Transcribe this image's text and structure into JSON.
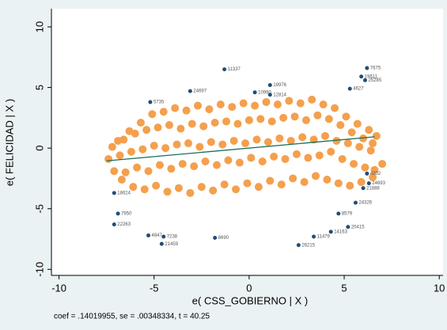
{
  "chart_data": {
    "type": "scatter",
    "xlabel": "e( CSS_GOBIERNO | X )",
    "ylabel": "e( FELICIDAD | X )",
    "note": "coef = .14019955, se = .00348334, t = 40.25",
    "xlim": [
      -10.4,
      10.2
    ],
    "ylim": [
      -10.5,
      11.5
    ],
    "xticks": [
      -10,
      -5,
      0,
      5,
      10
    ],
    "yticks": [
      -10,
      -5,
      0,
      5,
      10
    ],
    "grid": false,
    "series": [
      {
        "color": "#f4a04d",
        "x": [
          -6.9,
          -6.3,
          -5.7,
          -5.1,
          -4.5,
          -3.9,
          -3.3,
          -2.7,
          -2.1,
          -1.5,
          -0.9,
          -0.3,
          0.3,
          0.9,
          1.5,
          2.1,
          2.7,
          3.3,
          3.9,
          4.5,
          5.1,
          5.7,
          6.3,
          6.7,
          -7.2,
          -6.6,
          -6.0,
          -5.4,
          -4.8,
          -4.2,
          -3.6,
          -3.0,
          -2.4,
          -1.8,
          -1.2,
          -0.6,
          0.0,
          0.6,
          1.2,
          1.8,
          2.4,
          3.0,
          3.6,
          4.2,
          4.8,
          5.4,
          6.0,
          6.5,
          -7.4,
          -6.8,
          -6.2,
          -5.6,
          -5.0,
          -4.4,
          -3.8,
          -3.2,
          -2.6,
          -2.0,
          -1.4,
          -0.8,
          -0.2,
          0.4,
          1.0,
          1.6,
          2.2,
          2.8,
          3.4,
          4.0,
          4.6,
          5.2,
          5.8,
          6.4,
          -7.1,
          -6.5,
          -5.9,
          -5.3,
          -4.7,
          -4.1,
          -3.5,
          -2.9,
          -2.3,
          -1.7,
          -1.1,
          -0.5,
          0.1,
          0.7,
          1.3,
          1.9,
          2.5,
          3.1,
          3.7,
          4.3,
          4.9,
          5.5,
          6.1,
          6.6,
          -6.7,
          -6.1,
          -5.5,
          -4.9,
          -4.3,
          -3.7,
          -3.1,
          -2.5,
          -1.9,
          -1.3,
          -0.7,
          -0.1,
          0.5,
          1.1,
          1.7,
          2.3,
          2.9,
          3.5,
          4.1,
          4.7,
          5.3,
          5.9,
          6.5,
          7.0
        ],
        "y": [
          0.6,
          1.4,
          2.1,
          2.8,
          3.0,
          3.3,
          3.1,
          3.5,
          3.2,
          3.6,
          3.4,
          3.7,
          3.5,
          3.8,
          3.6,
          3.9,
          3.7,
          4.0,
          3.6,
          3.3,
          2.6,
          2.0,
          1.5,
          1.0,
          0.1,
          0.7,
          1.2,
          1.5,
          1.7,
          1.9,
          1.6,
          2.0,
          1.8,
          2.1,
          2.2,
          2.0,
          2.3,
          2.4,
          2.2,
          2.5,
          2.6,
          2.3,
          2.7,
          2.4,
          1.9,
          1.3,
          0.8,
          0.4,
          -0.9,
          -0.6,
          -0.3,
          -0.1,
          0.2,
          0.0,
          0.3,
          0.4,
          0.1,
          0.5,
          0.3,
          0.6,
          0.4,
          0.7,
          0.5,
          0.8,
          0.6,
          0.9,
          0.7,
          1.0,
          0.6,
          0.4,
          0.1,
          -0.2,
          -1.9,
          -2.0,
          -1.6,
          -1.9,
          -1.4,
          -1.7,
          -1.3,
          -1.5,
          -1.1,
          -1.4,
          -1.0,
          -1.2,
          -0.8,
          -1.1,
          -0.7,
          -0.9,
          -0.5,
          -0.8,
          -0.6,
          -0.3,
          -0.9,
          -1.3,
          -1.6,
          -1.8,
          -2.6,
          -3.2,
          -3.4,
          -3.1,
          -3.6,
          -3.3,
          -3.7,
          -3.2,
          -3.5,
          -3.0,
          -3.4,
          -2.9,
          -3.2,
          -2.7,
          -3.0,
          -2.5,
          -2.8,
          -2.3,
          -2.6,
          -2.9,
          -3.1,
          -2.8,
          -2.4,
          -1.3
        ]
      },
      {
        "color": "#1f4e79",
        "labels": [
          "11337",
          "7675",
          "19611",
          "25285",
          "19976",
          "4627",
          "4202",
          "24693",
          "20415",
          "14163",
          "11479",
          "21459",
          "7238",
          "4847",
          "22263",
          "7950",
          "18624",
          "24697",
          "10990",
          "12814",
          "5735",
          "8579",
          "24326",
          "26215",
          "8690",
          "21888"
        ],
        "x": [
          -1.3,
          6.2,
          5.9,
          6.1,
          1.1,
          5.3,
          6.2,
          6.3,
          5.2,
          4.3,
          3.4,
          -4.6,
          -4.5,
          -5.3,
          -7.1,
          -6.9,
          -7.1,
          -3.1,
          0.3,
          1.1,
          -5.2,
          4.7,
          5.6,
          2.6,
          -1.8,
          6.0
        ],
        "y": [
          6.5,
          6.6,
          5.9,
          5.6,
          5.2,
          4.9,
          -2.1,
          -2.9,
          -6.5,
          -6.9,
          -7.3,
          -7.9,
          -7.3,
          -7.2,
          -6.3,
          -5.4,
          -3.7,
          4.7,
          4.6,
          4.4,
          3.8,
          -5.4,
          -4.5,
          -8.0,
          -7.4,
          -3.3
        ]
      }
    ],
    "fit_line": {
      "color": "#1a6e5a",
      "x": [
        -7.5,
        6.6
      ],
      "y": [
        -1.05,
        0.93
      ]
    }
  }
}
